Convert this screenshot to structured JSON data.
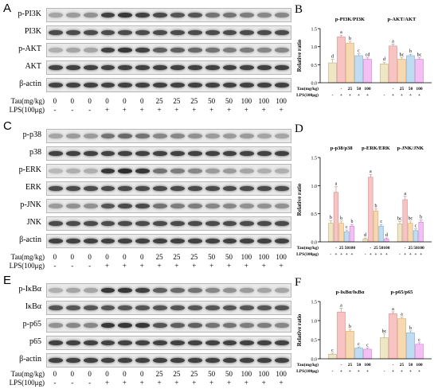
{
  "panels": [
    {
      "letter": "A",
      "blots": [
        {
          "label": "p-PI3K",
          "intensity": [
            0.35,
            0.4,
            0.45,
            0.85,
            0.9,
            0.85,
            0.8,
            0.75,
            0.75,
            0.6,
            0.6,
            0.55,
            0.5,
            0.5
          ]
        },
        {
          "label": "PI3K",
          "intensity": [
            0.8,
            0.8,
            0.8,
            0.8,
            0.8,
            0.8,
            0.8,
            0.8,
            0.8,
            0.8,
            0.8,
            0.8,
            0.8,
            0.8
          ]
        },
        {
          "label": "p-AKT",
          "intensity": [
            0.3,
            0.35,
            0.35,
            0.85,
            0.9,
            0.85,
            0.7,
            0.7,
            0.65,
            0.6,
            0.55,
            0.55,
            0.5,
            0.5
          ]
        },
        {
          "label": "AKT",
          "intensity": [
            0.85,
            0.85,
            0.85,
            0.85,
            0.85,
            0.85,
            0.85,
            0.85,
            0.85,
            0.85,
            0.85,
            0.85,
            0.85,
            0.85
          ]
        },
        {
          "label": "β-actin",
          "intensity": [
            0.85,
            0.85,
            0.85,
            0.85,
            0.85,
            0.85,
            0.85,
            0.85,
            0.85,
            0.85,
            0.85,
            0.85,
            0.85,
            0.85
          ]
        }
      ]
    },
    {
      "letter": "C",
      "blots": [
        {
          "label": "p-p38",
          "intensity": [
            0.35,
            0.4,
            0.4,
            0.6,
            0.65,
            0.6,
            0.5,
            0.5,
            0.45,
            0.4,
            0.4,
            0.4,
            0.35,
            0.35
          ]
        },
        {
          "label": "p38",
          "intensity": [
            0.85,
            0.85,
            0.85,
            0.85,
            0.85,
            0.85,
            0.85,
            0.85,
            0.85,
            0.85,
            0.85,
            0.85,
            0.85,
            0.85
          ]
        },
        {
          "label": "p-ERK",
          "intensity": [
            0.25,
            0.3,
            0.3,
            0.9,
            0.95,
            0.9,
            0.6,
            0.55,
            0.5,
            0.4,
            0.4,
            0.35,
            0.3,
            0.3
          ]
        },
        {
          "label": "ERK",
          "intensity": [
            0.8,
            0.8,
            0.8,
            0.8,
            0.8,
            0.8,
            0.8,
            0.8,
            0.8,
            0.8,
            0.8,
            0.8,
            0.8,
            0.8
          ]
        },
        {
          "label": "p-JNK",
          "intensity": [
            0.4,
            0.45,
            0.45,
            0.75,
            0.8,
            0.8,
            0.6,
            0.55,
            0.55,
            0.5,
            0.5,
            0.45,
            0.45,
            0.45
          ]
        },
        {
          "label": "JNK",
          "intensity": [
            0.8,
            0.8,
            0.8,
            0.8,
            0.8,
            0.8,
            0.8,
            0.8,
            0.8,
            0.8,
            0.8,
            0.8,
            0.8,
            0.8
          ]
        },
        {
          "label": "β-actin",
          "intensity": [
            0.85,
            0.85,
            0.85,
            0.85,
            0.85,
            0.85,
            0.85,
            0.85,
            0.85,
            0.85,
            0.85,
            0.85,
            0.85,
            0.85
          ]
        }
      ]
    },
    {
      "letter": "E",
      "blots": [
        {
          "label": "p-IκBα",
          "intensity": [
            0.3,
            0.35,
            0.35,
            0.9,
            0.9,
            0.85,
            0.7,
            0.65,
            0.6,
            0.5,
            0.45,
            0.4,
            0.35,
            0.35
          ]
        },
        {
          "label": "IκBα",
          "intensity": [
            0.75,
            0.75,
            0.75,
            0.75,
            0.75,
            0.75,
            0.75,
            0.75,
            0.75,
            0.75,
            0.75,
            0.75,
            0.75,
            0.75
          ]
        },
        {
          "label": "p-p65",
          "intensity": [
            0.45,
            0.5,
            0.5,
            0.9,
            0.9,
            0.9,
            0.75,
            0.7,
            0.7,
            0.6,
            0.6,
            0.55,
            0.55,
            0.5
          ]
        },
        {
          "label": "p65",
          "intensity": [
            0.85,
            0.85,
            0.85,
            0.85,
            0.85,
            0.85,
            0.85,
            0.85,
            0.85,
            0.85,
            0.85,
            0.85,
            0.85,
            0.85
          ]
        },
        {
          "label": "β-actin",
          "intensity": [
            0.85,
            0.85,
            0.85,
            0.85,
            0.85,
            0.85,
            0.85,
            0.85,
            0.85,
            0.85,
            0.85,
            0.85,
            0.85,
            0.85
          ]
        }
      ]
    }
  ],
  "conditions": {
    "tau_label": "Tau(mg/kg)",
    "lps_label": "LPS(100μg)",
    "tau_values": [
      "0",
      "0",
      "0",
      "0",
      "0",
      "0",
      "25",
      "25",
      "25",
      "50",
      "50",
      "100",
      "100",
      "100"
    ],
    "lps_values": [
      "-",
      "-",
      "-",
      "+",
      "+",
      "+",
      "+",
      "+",
      "+",
      "+",
      "+",
      "+",
      "+",
      "+"
    ]
  },
  "chart_data": [
    {
      "letter": "B",
      "type": "bar",
      "ylabel": "Relative ratio",
      "ylim": [
        0,
        1.5
      ],
      "yticks": [
        "0.0",
        "0.5",
        "1.0",
        "1.5"
      ],
      "groups": [
        {
          "title": "p-PI3K/PI3K",
          "values": [
            0.55,
            1.27,
            1.1,
            0.75,
            0.65
          ],
          "errors": [
            0.1,
            0.05,
            0.05,
            0.05,
            0.04
          ],
          "letters": [
            "d",
            "a",
            "b",
            "c",
            "cd"
          ]
        },
        {
          "title": "p-AKT/AKT",
          "values": [
            0.52,
            1.02,
            0.65,
            0.75,
            0.65
          ],
          "errors": [
            0.05,
            0.05,
            0.05,
            0.04,
            0.04
          ],
          "letters": [
            "d",
            "a",
            "bc",
            "b",
            "bc"
          ]
        }
      ],
      "tau_label": "Tau(mg/kg)",
      "lps_label": "LPS(100μg)",
      "tau_values": [
        "",
        "-",
        "25",
        "50",
        "100"
      ],
      "lps_values": [
        "-",
        "+",
        "+",
        "+",
        "+"
      ]
    },
    {
      "letter": "D",
      "type": "bar",
      "ylabel": "Relative ratio",
      "ylim": [
        0,
        1.5
      ],
      "yticks": [
        "0.0",
        "0.5",
        "1.0",
        "1.5"
      ],
      "groups": [
        {
          "title": "p-p38/p38",
          "values": [
            0.33,
            0.88,
            0.33,
            0.18,
            0.28
          ],
          "errors": [
            0.05,
            0.1,
            0.04,
            0.03,
            0.03
          ],
          "letters": [
            "b",
            "a",
            "b",
            "c",
            "b"
          ]
        },
        {
          "title": "p-ERK/ERK",
          "values": [
            0.05,
            1.15,
            0.55,
            0.28,
            0.05
          ],
          "errors": [
            0.02,
            0.05,
            0.04,
            0.03,
            0.02
          ],
          "letters": [
            "d",
            "a",
            "b",
            "c",
            "d"
          ]
        },
        {
          "title": "p-JNK/JNK",
          "values": [
            0.32,
            0.75,
            0.33,
            0.2,
            0.35
          ],
          "errors": [
            0.04,
            0.06,
            0.04,
            0.03,
            0.04
          ],
          "letters": [
            "bc",
            "a",
            "bc",
            "c",
            "b"
          ]
        }
      ],
      "tau_label": "Tau(mg/kg)",
      "lps_label": "LPS(100μg)",
      "tau_values": [
        "",
        "-",
        "25",
        "50",
        "100"
      ],
      "lps_values": [
        "-",
        "+",
        "+",
        "+",
        "+"
      ]
    },
    {
      "letter": "F",
      "type": "bar",
      "ylabel": "Relative ratio",
      "ylim": [
        0,
        1.5
      ],
      "yticks": [
        "0.0",
        "0.5",
        "1.0",
        "1.5"
      ],
      "groups": [
        {
          "title": "p-IκBα/IκBα",
          "values": [
            0.12,
            1.22,
            0.72,
            0.28,
            0.25
          ],
          "errors": [
            0.03,
            0.1,
            0.05,
            0.03,
            0.03
          ],
          "letters": [
            "c",
            "a",
            "b",
            "c",
            "c"
          ]
        },
        {
          "title": "p-p65/p65",
          "values": [
            0.55,
            1.18,
            1.05,
            0.68,
            0.38
          ],
          "errors": [
            0.1,
            0.05,
            0.04,
            0.05,
            0.04
          ],
          "letters": [
            "bc",
            "a",
            "a",
            "b",
            "c"
          ]
        }
      ],
      "tau_label": "Tau(mg/kg)",
      "lps_label": "LPS(100μg)",
      "tau_values": [
        "",
        "-",
        "25",
        "50",
        "100"
      ],
      "lps_values": [
        "-",
        "+",
        "+",
        "+",
        "+"
      ]
    }
  ],
  "bar_colors": [
    "#efe6c6",
    "#f7c3c3",
    "#f6d9b0",
    "#bfdcf2",
    "#f4c0f4"
  ],
  "bar_edge_colors": [
    "#b9aa7a",
    "#d98a8a",
    "#d7a765",
    "#7ea9cd",
    "#d07ed0"
  ]
}
